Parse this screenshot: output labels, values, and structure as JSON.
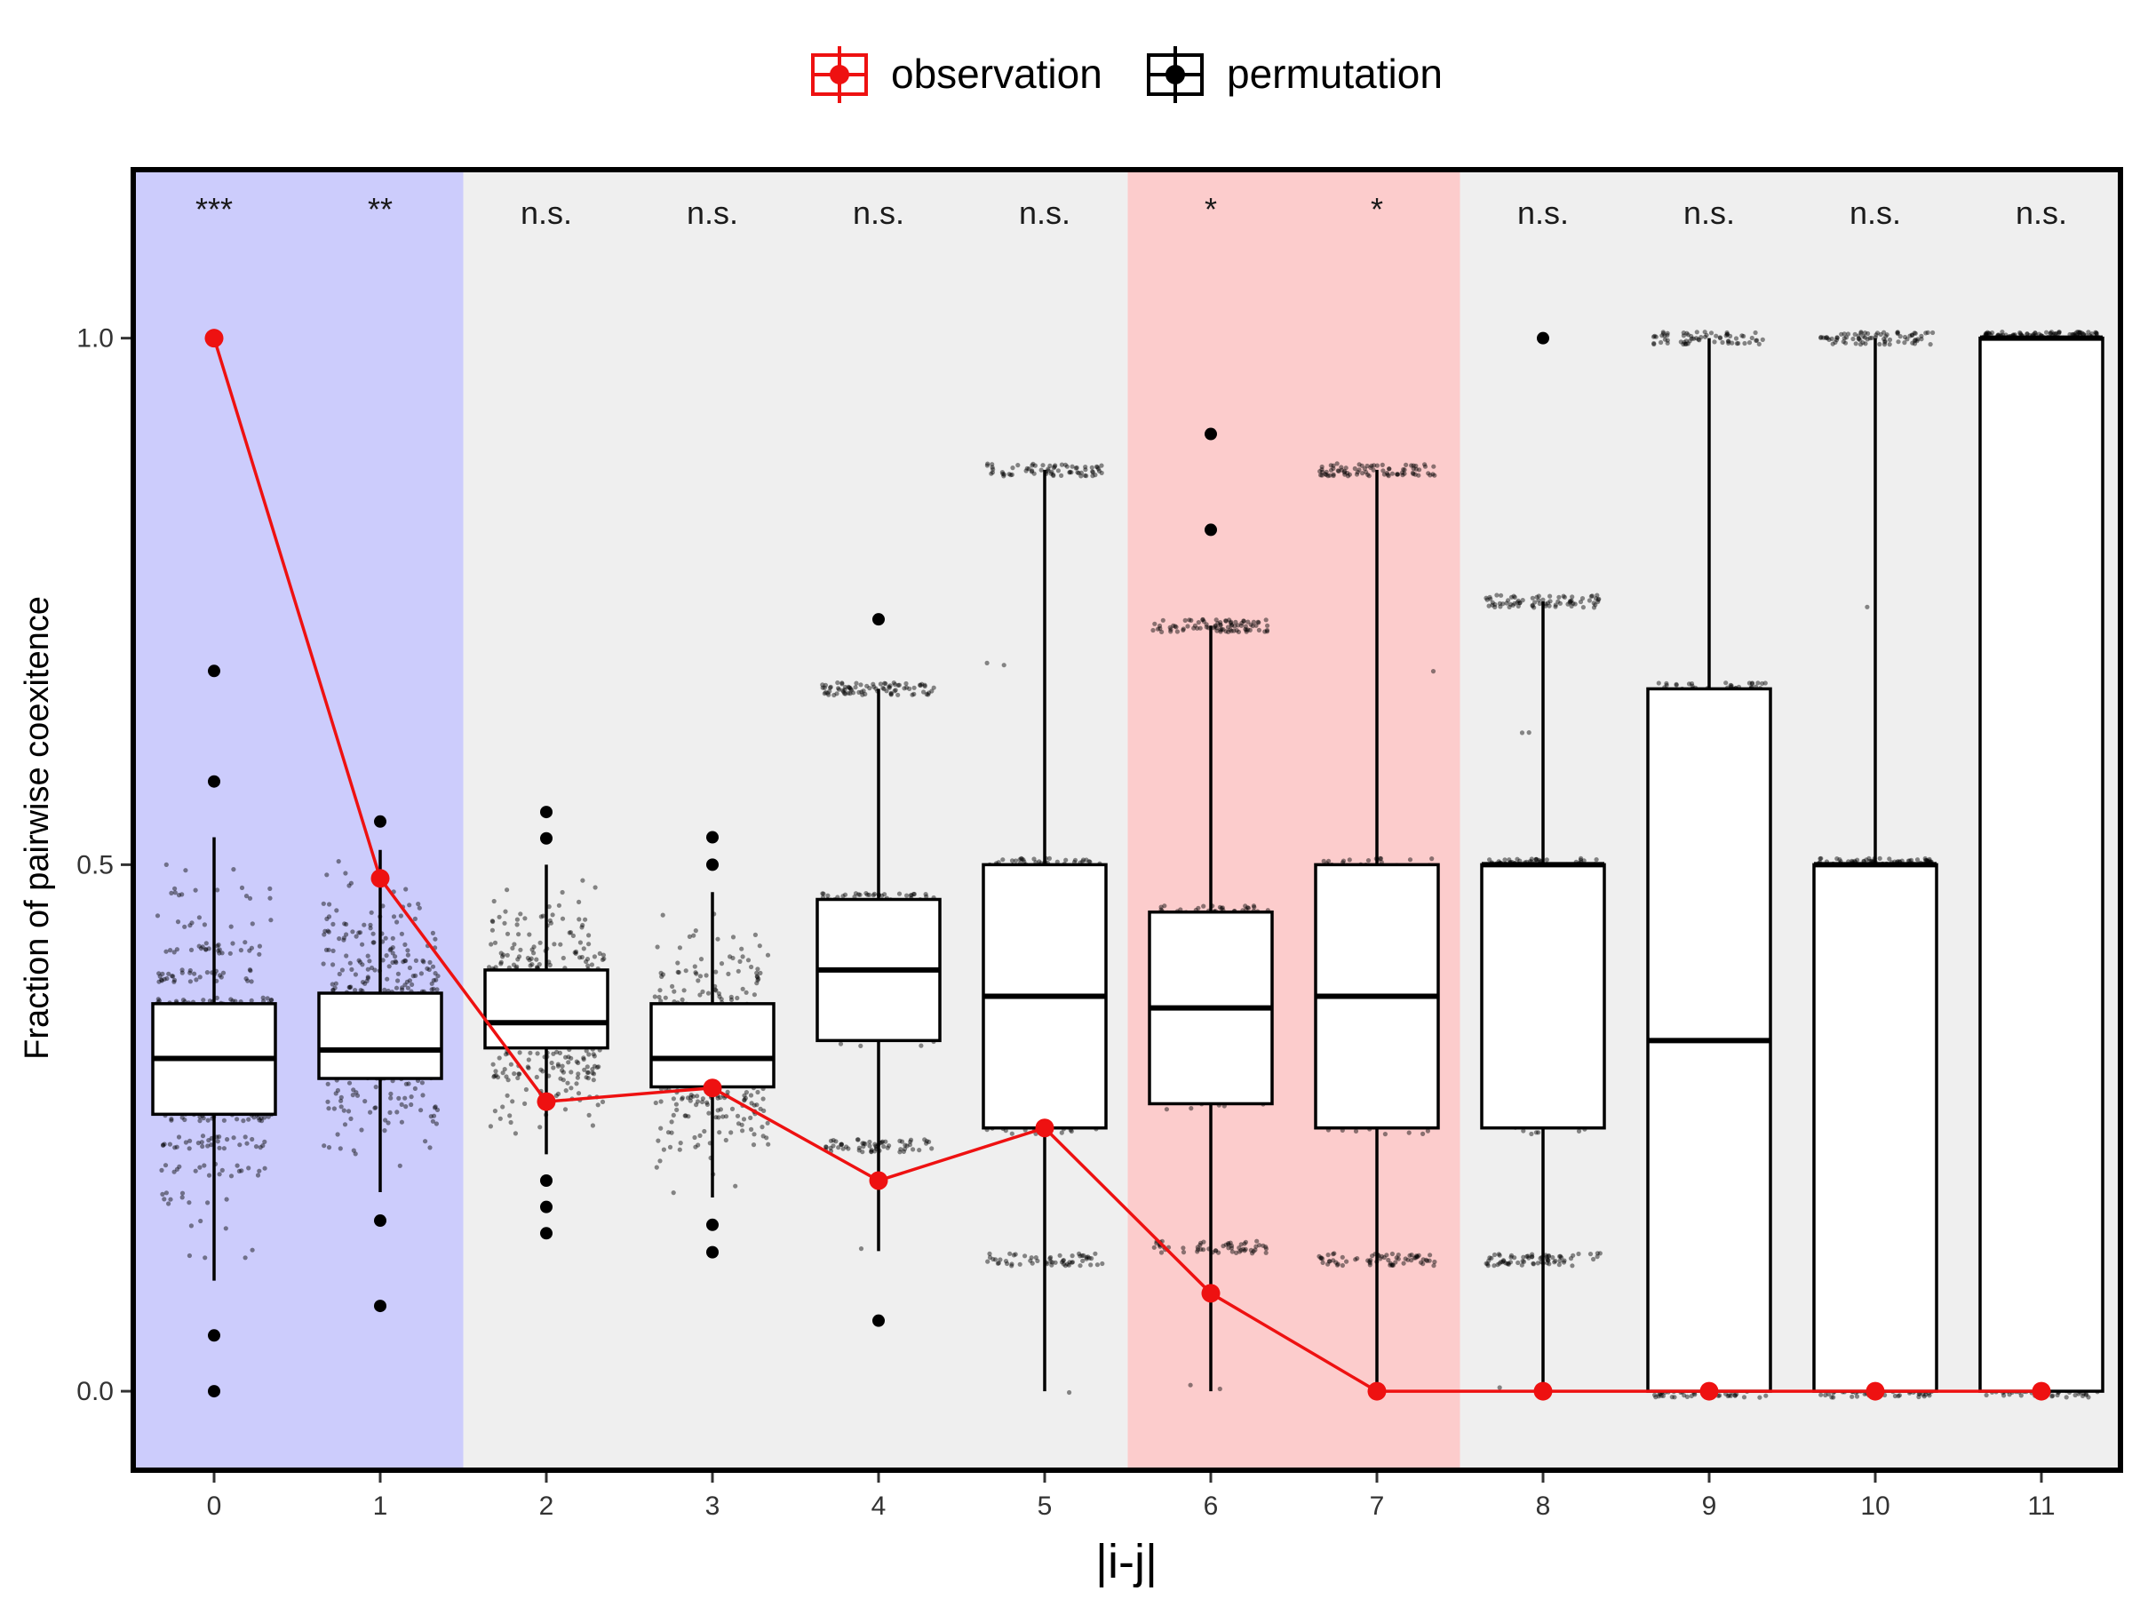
{
  "chart_data": {
    "type": "box",
    "title": "",
    "xlabel": "|i-j|",
    "ylabel": "Fraction of pairwise coexitence",
    "categories": [
      "0",
      "1",
      "2",
      "3",
      "4",
      "5",
      "6",
      "7",
      "8",
      "9",
      "10",
      "11"
    ],
    "ylim": [
      -0.075,
      1.16
    ],
    "yticks": [
      0.0,
      0.5,
      1.0
    ],
    "ytick_labels": [
      "0.0",
      "0.5",
      "1.0"
    ],
    "grid": false,
    "legend": {
      "position": "top",
      "entries": [
        {
          "label": "observation",
          "color": "#ee1111"
        },
        {
          "label": "permutation",
          "color": "#000000"
        }
      ]
    },
    "significance": [
      "***",
      "**",
      "n.s.",
      "n.s.",
      "n.s.",
      "n.s.",
      "*",
      "*",
      "n.s.",
      "n.s.",
      "n.s.",
      "n.s."
    ],
    "band_colors": {
      "***": "#ccccfc",
      "**": "#ccccfc",
      "*": "#fccccc",
      "n.s.": "#efefef"
    },
    "series": [
      {
        "name": "observation",
        "color": "#ee1111",
        "values": [
          1.0,
          0.487,
          0.275,
          0.288,
          0.2,
          0.25,
          0.093,
          0.0,
          0.0,
          0.0,
          0.0,
          0.0
        ]
      },
      {
        "name": "permutation",
        "color": "#000000",
        "boxes": [
          {
            "q1": 0.263,
            "median": 0.316,
            "q3": 0.368,
            "whisker_low": 0.105,
            "whisker_high": 0.526,
            "outliers": [
              0.684,
              0.579,
              0.053,
              0.0
            ]
          },
          {
            "q1": 0.297,
            "median": 0.324,
            "q3": 0.378,
            "whisker_low": 0.189,
            "whisker_high": 0.514,
            "outliers": [
              0.541,
              0.162,
              0.081
            ]
          },
          {
            "q1": 0.326,
            "median": 0.35,
            "q3": 0.4,
            "whisker_low": 0.225,
            "whisker_high": 0.5,
            "outliers": [
              0.55,
              0.525,
              0.2,
              0.175,
              0.15
            ]
          },
          {
            "q1": 0.289,
            "median": 0.316,
            "q3": 0.368,
            "whisker_low": 0.184,
            "whisker_high": 0.474,
            "outliers": [
              0.526,
              0.5,
              0.158,
              0.132
            ]
          },
          {
            "q1": 0.333,
            "median": 0.4,
            "q3": 0.467,
            "whisker_low": 0.133,
            "whisker_high": 0.667,
            "outliers": [
              0.733,
              0.067
            ]
          },
          {
            "q1": 0.25,
            "median": 0.375,
            "q3": 0.5,
            "whisker_low": 0.0,
            "whisker_high": 0.875,
            "outliers": []
          },
          {
            "q1": 0.273,
            "median": 0.364,
            "q3": 0.455,
            "whisker_low": 0.0,
            "whisker_high": 0.727,
            "outliers": [
              0.909,
              0.818
            ]
          },
          {
            "q1": 0.25,
            "median": 0.375,
            "q3": 0.5,
            "whisker_low": 0.0,
            "whisker_high": 0.875,
            "outliers": []
          },
          {
            "q1": 0.25,
            "median": 0.5,
            "q3": 0.5,
            "whisker_low": 0.0,
            "whisker_high": 0.75,
            "outliers": [
              1.0
            ]
          },
          {
            "q1": 0.0,
            "median": 0.333,
            "q3": 0.667,
            "whisker_low": 0.0,
            "whisker_high": 1.0,
            "outliers": []
          },
          {
            "q1": 0.0,
            "median": 0.5,
            "q3": 0.5,
            "whisker_low": 0.0,
            "whisker_high": 1.0,
            "outliers": []
          },
          {
            "q1": 0.0,
            "median": 1.0,
            "q3": 1.0,
            "whisker_low": 0.0,
            "whisker_high": 1.0,
            "outliers": []
          }
        ]
      }
    ]
  }
}
